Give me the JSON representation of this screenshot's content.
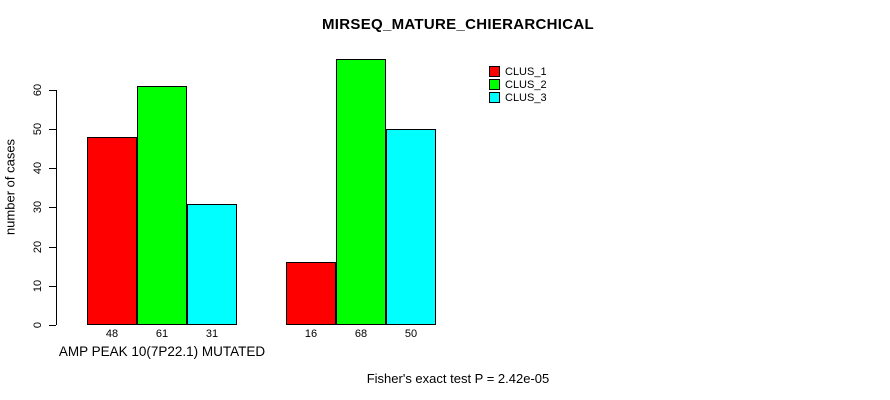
{
  "title": "MIRSEQ_MATURE_CHIERARCHICAL",
  "footer_note": "Fisher's exact test P = 2.42e-05",
  "colors": {
    "clus_1": "#ff0000",
    "clus_2": "#00ff00",
    "clus_3": "#00ffff",
    "axis": "#000000",
    "background": "#ffffff"
  },
  "chart_data": {
    "type": "bar",
    "title": "MIRSEQ_MATURE_CHIERARCHICAL",
    "xlabel": "AMP PEAK 10(7P22.1) MUTATED",
    "ylabel": "number of cases",
    "ylim": [
      0,
      60
    ],
    "yticks": [
      0,
      10,
      20,
      30,
      40,
      50,
      60
    ],
    "grid": false,
    "legend_position": "top-right",
    "series": [
      {
        "name": "CLUS_1",
        "color": "#ff0000",
        "values": [
          48,
          16
        ]
      },
      {
        "name": "CLUS_2",
        "color": "#00ff00",
        "values": [
          61,
          68
        ]
      },
      {
        "name": "CLUS_3",
        "color": "#00ffff",
        "values": [
          31,
          50
        ]
      }
    ],
    "groups": [
      {
        "label": "AMP PEAK 10(7P22.1) MUTATED",
        "values": [
          48,
          61,
          31
        ]
      },
      {
        "label": "",
        "values": [
          16,
          68,
          50
        ]
      }
    ],
    "bar_value_labels": [
      [
        48,
        61,
        31
      ],
      [
        16,
        68,
        50
      ]
    ],
    "annotation": "Fisher's exact test P = 2.42e-05"
  }
}
